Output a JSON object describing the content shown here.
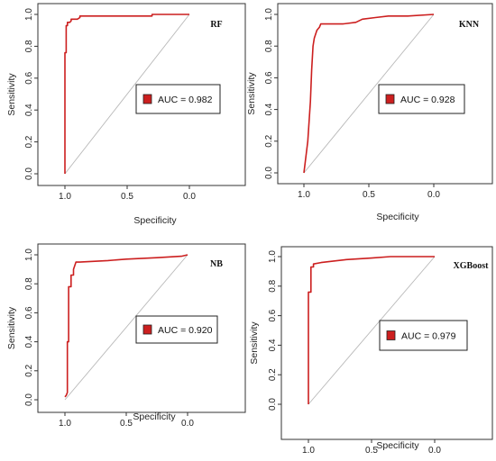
{
  "chart_data": [
    {
      "type": "line",
      "title": "RF",
      "xlabel": "Specificity",
      "ylabel": "Sensitivity",
      "x_reversed": true,
      "xlim": [
        1.0,
        0.0
      ],
      "ylim": [
        0.0,
        1.0
      ],
      "x_ticks": [
        "1.0",
        "0.5",
        "0.0"
      ],
      "y_ticks": [
        "0.0",
        "0.2",
        "0.4",
        "0.6",
        "0.8",
        "1.0"
      ],
      "legend": "center-right",
      "auc_label": "AUC = 0.982",
      "series": [
        {
          "color": "#cc1f1f",
          "specificity": [
            1.0,
            1.0,
            0.99,
            0.99,
            0.98,
            0.98,
            0.96,
            0.95,
            0.95,
            0.9,
            0.88,
            0.88,
            0.3,
            0.3,
            0.0
          ],
          "sensitivity": [
            0.0,
            0.76,
            0.76,
            0.93,
            0.93,
            0.95,
            0.95,
            0.96,
            0.97,
            0.97,
            0.98,
            0.99,
            0.99,
            1.0,
            1.0
          ]
        }
      ],
      "diagonal_color": "#b8b8b8"
    },
    {
      "type": "line",
      "title": "KNN",
      "xlabel": "Specificity",
      "ylabel": "Sensitivity",
      "x_reversed": true,
      "xlim": [
        1.0,
        0.0
      ],
      "ylim": [
        0.0,
        1.0
      ],
      "x_ticks": [
        "1.0",
        "0.5",
        "0.0"
      ],
      "y_ticks": [
        "0.0",
        "0.2",
        "0.4",
        "0.6",
        "0.8",
        "1.0"
      ],
      "legend": "center-right",
      "auc_label": "AUC = 0.928",
      "series": [
        {
          "color": "#cc1f1f",
          "specificity": [
            1.0,
            0.97,
            0.95,
            0.94,
            0.93,
            0.92,
            0.9,
            0.88,
            0.87,
            0.7,
            0.6,
            0.55,
            0.45,
            0.35,
            0.2,
            0.0
          ],
          "sensitivity": [
            0.0,
            0.2,
            0.45,
            0.65,
            0.8,
            0.85,
            0.9,
            0.92,
            0.94,
            0.94,
            0.95,
            0.97,
            0.98,
            0.99,
            0.99,
            1.0
          ]
        }
      ],
      "diagonal_color": "#b8b8b8"
    },
    {
      "type": "line",
      "title": "NB",
      "xlabel": "Specificity",
      "ylabel": "Sensitivity",
      "x_reversed": true,
      "xlim": [
        1.0,
        0.0
      ],
      "ylim": [
        0.0,
        1.0
      ],
      "x_ticks": [
        "1.0",
        "0.5",
        "0.0"
      ],
      "y_ticks": [
        "0.0",
        "0.2",
        "0.4",
        "0.6",
        "0.8",
        "1.0"
      ],
      "legend": "center-right",
      "auc_label": "AUC = 0.920",
      "series": [
        {
          "color": "#cc1f1f",
          "specificity": [
            1.0,
            0.99,
            0.98,
            0.98,
            0.97,
            0.97,
            0.95,
            0.95,
            0.93,
            0.93,
            0.91,
            0.88,
            0.65,
            0.5,
            0.25,
            0.05,
            0.0
          ],
          "sensitivity": [
            0.02,
            0.03,
            0.05,
            0.4,
            0.4,
            0.78,
            0.78,
            0.86,
            0.86,
            0.9,
            0.95,
            0.95,
            0.96,
            0.97,
            0.98,
            0.99,
            1.0
          ]
        }
      ],
      "diagonal_color": "#b8b8b8"
    },
    {
      "type": "line",
      "title": "XGBoost",
      "xlabel": "Specificity",
      "ylabel": "Sensitivity",
      "x_reversed": true,
      "xlim": [
        1.0,
        0.0
      ],
      "ylim": [
        0.0,
        1.0
      ],
      "x_ticks": [
        "1.0",
        "0.5",
        "0.0"
      ],
      "y_ticks": [
        "0.0",
        "0.2",
        "0.4",
        "0.6",
        "0.8",
        "1.0"
      ],
      "legend": "center-right",
      "auc_label": "AUC =  0.979",
      "series": [
        {
          "color": "#cc1f1f",
          "specificity": [
            1.0,
            1.0,
            0.98,
            0.98,
            0.96,
            0.96,
            0.9,
            0.8,
            0.7,
            0.5,
            0.35,
            0.0
          ],
          "sensitivity": [
            0.0,
            0.76,
            0.76,
            0.93,
            0.93,
            0.95,
            0.96,
            0.97,
            0.98,
            0.99,
            1.0,
            1.0
          ]
        }
      ],
      "diagonal_color": "#b8b8b8"
    }
  ]
}
